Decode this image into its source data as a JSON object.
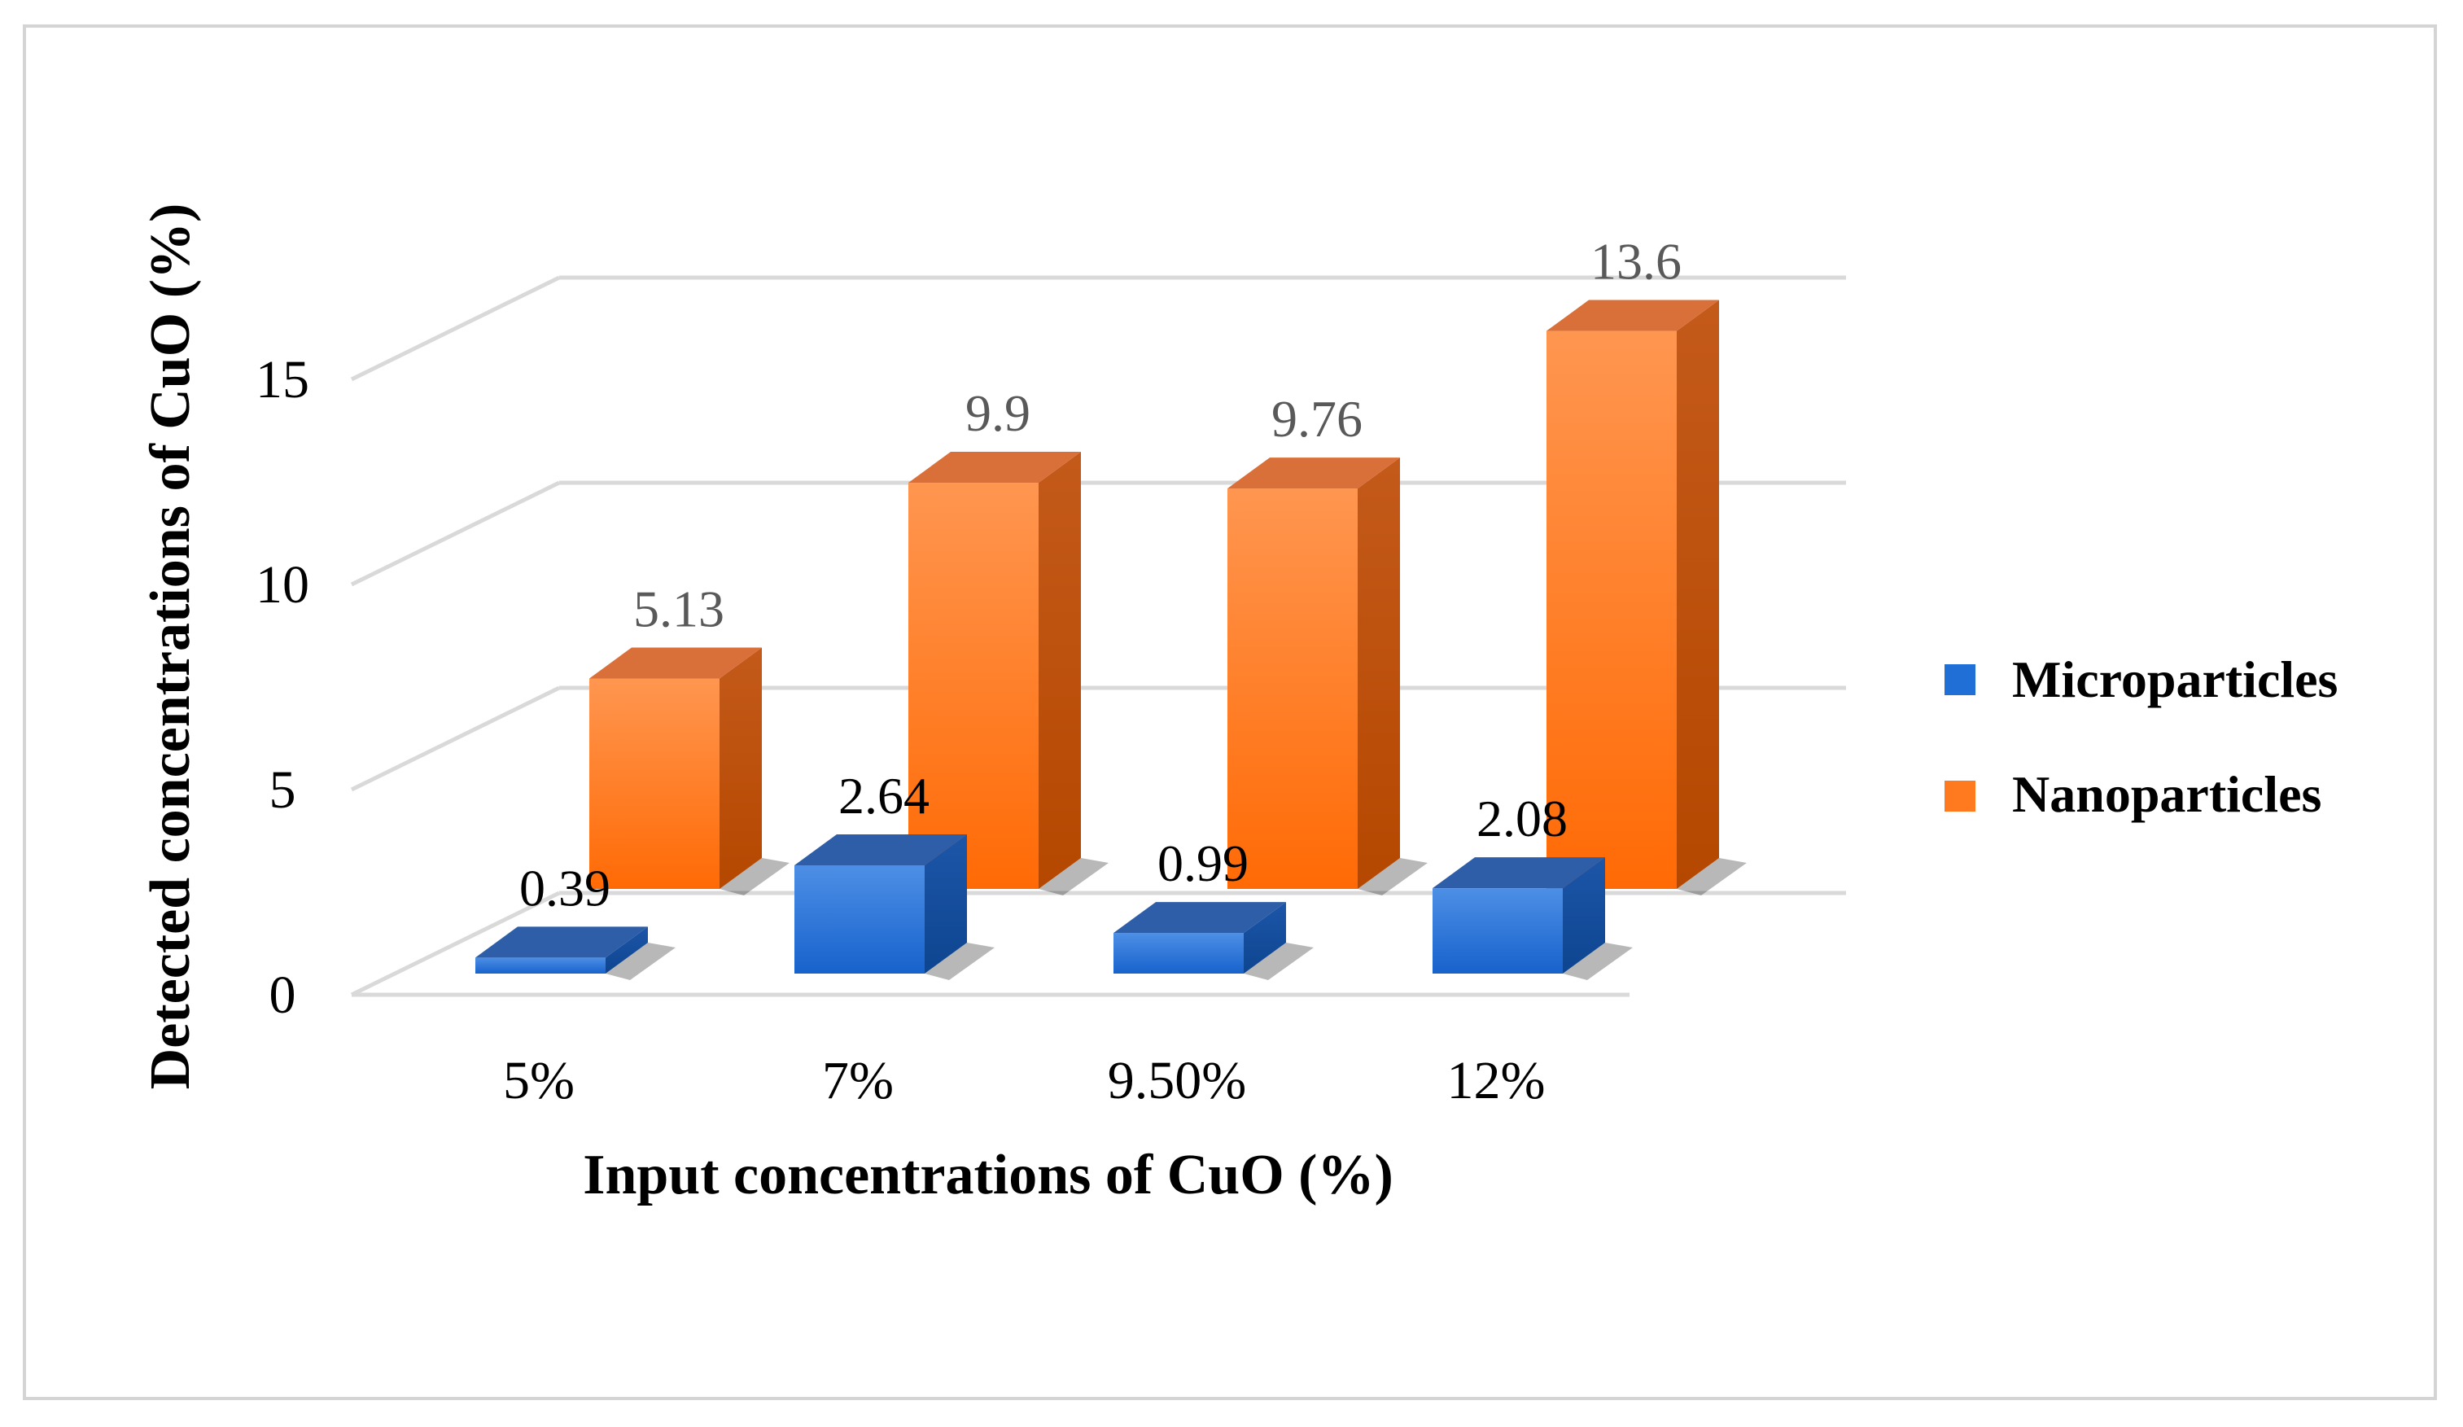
{
  "chart_data": {
    "type": "bar",
    "style": "3d-clustered",
    "title": "",
    "categories": [
      "5%",
      "7%",
      "9.50%",
      "12%"
    ],
    "series": [
      {
        "name": "Microparticles",
        "values": [
          0.39,
          2.64,
          0.99,
          2.08
        ],
        "labels": [
          "0.39",
          "2.64",
          "0.99",
          "2.08"
        ],
        "color": "#1f6fd6"
      },
      {
        "name": "Nanoparticles",
        "values": [
          5.13,
          9.9,
          9.76,
          13.6
        ],
        "labels": [
          "5.13",
          "9.9",
          "9.76",
          "13.6"
        ],
        "color": "#ff7a1f"
      }
    ],
    "xlabel": "Input concentrations of CuO (%)",
    "ylabel": "Detected concentrations of CuO (%)",
    "ylim": [
      0,
      15
    ],
    "yticks": [
      "0",
      "5",
      "10",
      "15"
    ],
    "grid": true,
    "legend": "right"
  }
}
